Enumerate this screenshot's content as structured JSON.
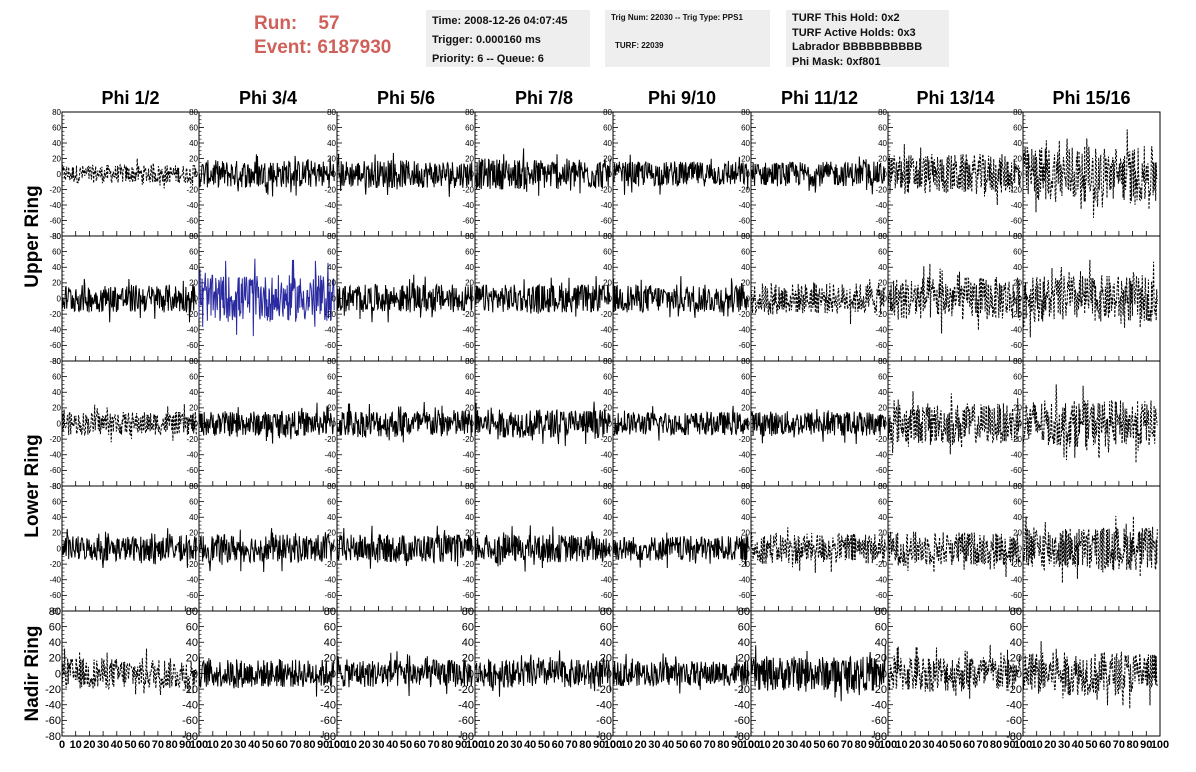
{
  "header": {
    "run_label": "Run:",
    "run_value": "57",
    "event_label": "Event:",
    "event_value": "6187930",
    "colors": {
      "run_text": "#d0605a",
      "box_bg": "#eeeeee"
    },
    "box1": [
      "Time: 2008-12-26 04:07:45",
      "Trigger: 0.000160 ms",
      "Priority: 6 -- Queue: 6"
    ],
    "box2": [
      "Trig Num: 22030 -- Trig Type: PPS1",
      "TURF: 22039"
    ],
    "box3": [
      "TURF This Hold: 0x2",
      "TURF Active Holds: 0x3",
      "Labrador BBBBBBBBBB",
      "Phi Mask: 0xf801"
    ]
  },
  "chart_data": {
    "type": "line",
    "description_grid": "5 rows x 8 columns of waveform panels",
    "columns": [
      "Phi 1/2",
      "Phi 3/4",
      "Phi 5/6",
      "Phi 7/8",
      "Phi 9/10",
      "Phi 11/12",
      "Phi 13/14",
      "Phi 15/16"
    ],
    "ring_labels": [
      {
        "label": "Upper Ring",
        "rows": [
          0,
          1
        ]
      },
      {
        "label": "Lower Ring",
        "rows": [
          2,
          3
        ]
      },
      {
        "label": "Nadir Ring",
        "rows": [
          4
        ]
      }
    ],
    "xlim": [
      0,
      100
    ],
    "ylim": [
      -80,
      80
    ],
    "x_ticks": [
      "0",
      "10",
      "20",
      "30",
      "40",
      "50",
      "60",
      "70",
      "80",
      "90",
      "100"
    ],
    "y_ticks": [
      "-80",
      "-60",
      "-40",
      "-20",
      "0",
      "20",
      "40",
      "60",
      "80"
    ],
    "styles": {
      "solid_color": "#000000",
      "highlight_color": "#2a2aa0",
      "dashed": "dashed black"
    },
    "panels": [
      [
        {
          "amp": 12,
          "style": "dashed"
        },
        {
          "amp": 18,
          "style": "solid"
        },
        {
          "amp": 18,
          "style": "solid"
        },
        {
          "amp": 20,
          "style": "solid"
        },
        {
          "amp": 16,
          "style": "solid"
        },
        {
          "amp": 16,
          "style": "solid"
        },
        {
          "amp": 26,
          "style": "dashed"
        },
        {
          "amp": 36,
          "style": "dashed"
        }
      ],
      [
        {
          "amp": 18,
          "style": "solid"
        },
        {
          "amp": 30,
          "style": "highlight"
        },
        {
          "amp": 18,
          "style": "solid"
        },
        {
          "amp": 18,
          "style": "solid"
        },
        {
          "amp": 18,
          "style": "solid"
        },
        {
          "amp": 20,
          "style": "dashed"
        },
        {
          "amp": 28,
          "style": "dashed"
        },
        {
          "amp": 30,
          "style": "dashed"
        }
      ],
      [
        {
          "amp": 15,
          "style": "dashed"
        },
        {
          "amp": 16,
          "style": "solid"
        },
        {
          "amp": 18,
          "style": "solid"
        },
        {
          "amp": 18,
          "style": "solid"
        },
        {
          "amp": 15,
          "style": "solid"
        },
        {
          "amp": 16,
          "style": "solid"
        },
        {
          "amp": 26,
          "style": "dashed"
        },
        {
          "amp": 30,
          "style": "dashed"
        }
      ],
      [
        {
          "amp": 16,
          "style": "solid"
        },
        {
          "amp": 18,
          "style": "solid"
        },
        {
          "amp": 18,
          "style": "solid"
        },
        {
          "amp": 18,
          "style": "solid"
        },
        {
          "amp": 16,
          "style": "solid"
        },
        {
          "amp": 20,
          "style": "dashed"
        },
        {
          "amp": 22,
          "style": "dashed"
        },
        {
          "amp": 28,
          "style": "dashed"
        }
      ],
      [
        {
          "amp": 20,
          "style": "dashed"
        },
        {
          "amp": 18,
          "style": "solid"
        },
        {
          "amp": 18,
          "style": "solid"
        },
        {
          "amp": 18,
          "style": "solid"
        },
        {
          "amp": 16,
          "style": "solid"
        },
        {
          "amp": 22,
          "style": "solid"
        },
        {
          "amp": 24,
          "style": "dashed"
        },
        {
          "amp": 28,
          "style": "dashed"
        }
      ]
    ]
  }
}
